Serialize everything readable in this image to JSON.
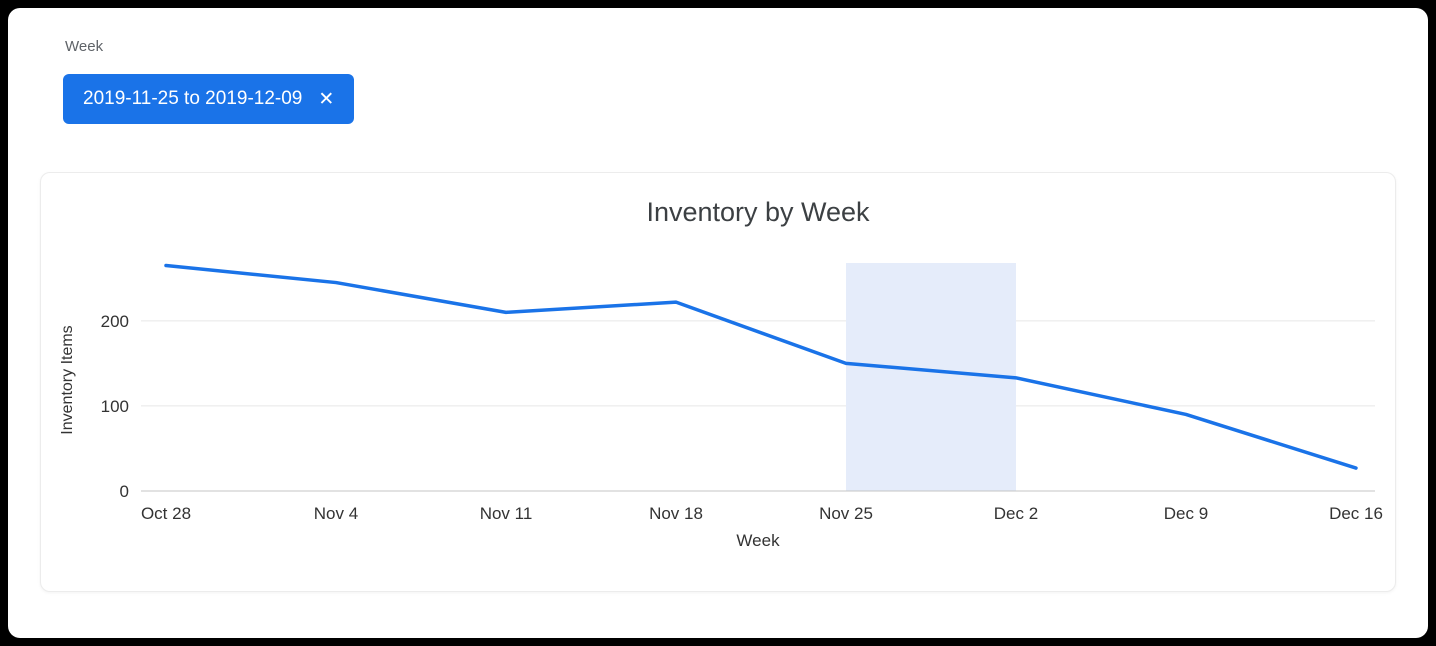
{
  "filter": {
    "label": "Week",
    "chip": {
      "text": "2019-11-25 to 2019-12-09",
      "close_icon": "✕"
    }
  },
  "chart_data": {
    "type": "line",
    "title": "Inventory by Week",
    "xlabel": "Week",
    "ylabel": "Inventory Items",
    "categories": [
      "Oct 28",
      "Nov 4",
      "Nov 11",
      "Nov 18",
      "Nov 25",
      "Dec 2",
      "Dec 9",
      "Dec 16"
    ],
    "values": [
      265,
      245,
      210,
      222,
      150,
      133,
      90,
      27
    ],
    "ylim": [
      0,
      268
    ],
    "yticks": [
      0,
      100,
      200
    ],
    "grid": true,
    "legend": false,
    "line_color": "#1a73e8",
    "highlight_region": {
      "from_category": "Nov 25",
      "to_category": "Dec 2",
      "color": "#e5ecfa"
    }
  },
  "colors": {
    "accent": "#1a73e8",
    "chip_background": "#1a73e8",
    "chip_text": "#ffffff",
    "highlight_band": "#e5ecfa",
    "gridline": "#e6e6e6",
    "axis_line": "#c4c4c4",
    "axis_text": "#333333"
  }
}
